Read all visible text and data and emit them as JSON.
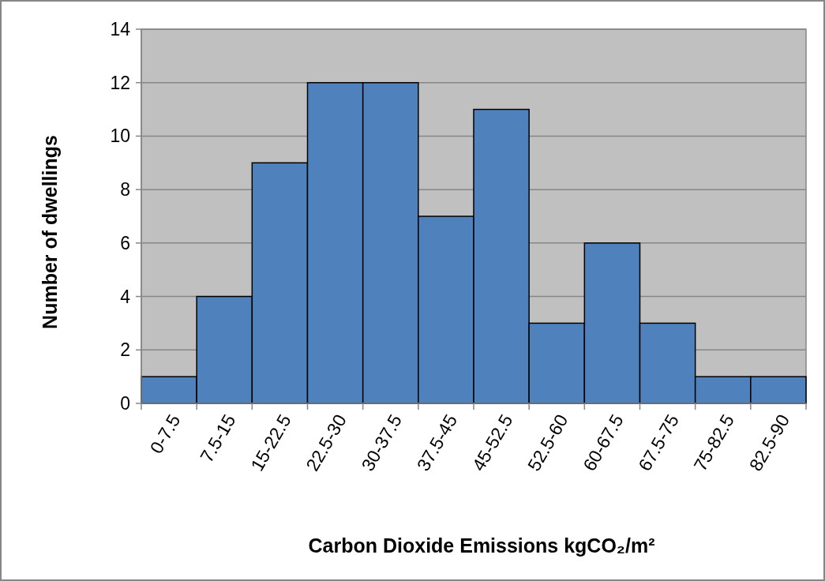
{
  "chart_data": {
    "type": "bar",
    "xlabel": "Carbon Dioxide Emissions kgCO₂/m²",
    "ylabel": "Number of dwellings",
    "categories": [
      "0-7.5",
      "7.5-15",
      "15-22.5",
      "22.5-30",
      "30-37.5",
      "37.5-45",
      "45-52.5",
      "52.5-60",
      "60-67.5",
      "67.5-75",
      "75-82.5",
      "82.5-90"
    ],
    "values": [
      1,
      4,
      9,
      12,
      12,
      7,
      11,
      3,
      6,
      3,
      1,
      1
    ],
    "color": "#4f81bd",
    "ylim": [
      0,
      14
    ],
    "yticks": [
      0,
      2,
      4,
      6,
      8,
      10,
      12,
      14
    ],
    "grid": "y"
  }
}
